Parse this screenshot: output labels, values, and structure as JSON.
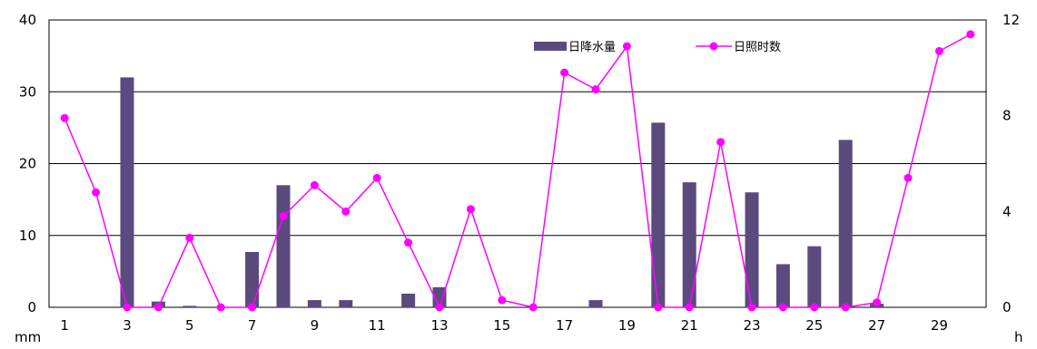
{
  "chart_data": {
    "type": "bar+line",
    "colors": {
      "bar": "#5b4a7e",
      "line": "#ff00ff",
      "grid": "#000000"
    },
    "x": [
      1,
      2,
      3,
      4,
      5,
      6,
      7,
      8,
      9,
      10,
      11,
      12,
      13,
      14,
      15,
      16,
      17,
      18,
      19,
      20,
      21,
      22,
      23,
      24,
      25,
      26,
      27,
      28,
      29,
      30
    ],
    "x_tick_labels": [
      "1",
      "3",
      "5",
      "7",
      "9",
      "11",
      "13",
      "15",
      "17",
      "19",
      "21",
      "23",
      "25",
      "27",
      "29"
    ],
    "y_left": {
      "label": "mm",
      "ylim": [
        0,
        40
      ],
      "ticks": [
        0,
        10,
        20,
        30,
        40
      ]
    },
    "y_right": {
      "label": "h",
      "ylim": [
        0,
        12
      ],
      "ticks": [
        0,
        4,
        8,
        12
      ]
    },
    "legend_position": "top-right",
    "grid": "horizontal",
    "series": [
      {
        "name": "日降水量",
        "type": "bar",
        "axis": "left",
        "values": [
          0,
          0,
          32,
          0.8,
          0.2,
          0,
          7.7,
          17,
          1,
          1,
          0,
          1.9,
          2.8,
          0,
          0,
          0,
          0,
          1,
          0,
          25.7,
          17.4,
          0,
          16,
          6,
          8.5,
          23.3,
          0.5,
          0,
          0,
          0
        ]
      },
      {
        "name": "日照时数",
        "type": "line",
        "axis": "right",
        "values": [
          7.9,
          4.8,
          0,
          0,
          2.9,
          0,
          0,
          3.8,
          5.1,
          4,
          5.4,
          2.7,
          0,
          4.1,
          0.3,
          0,
          9.8,
          9.1,
          10.9,
          0,
          0,
          6.9,
          0,
          0,
          0,
          0,
          0.2,
          5.4,
          10.7,
          11.4
        ]
      }
    ]
  }
}
